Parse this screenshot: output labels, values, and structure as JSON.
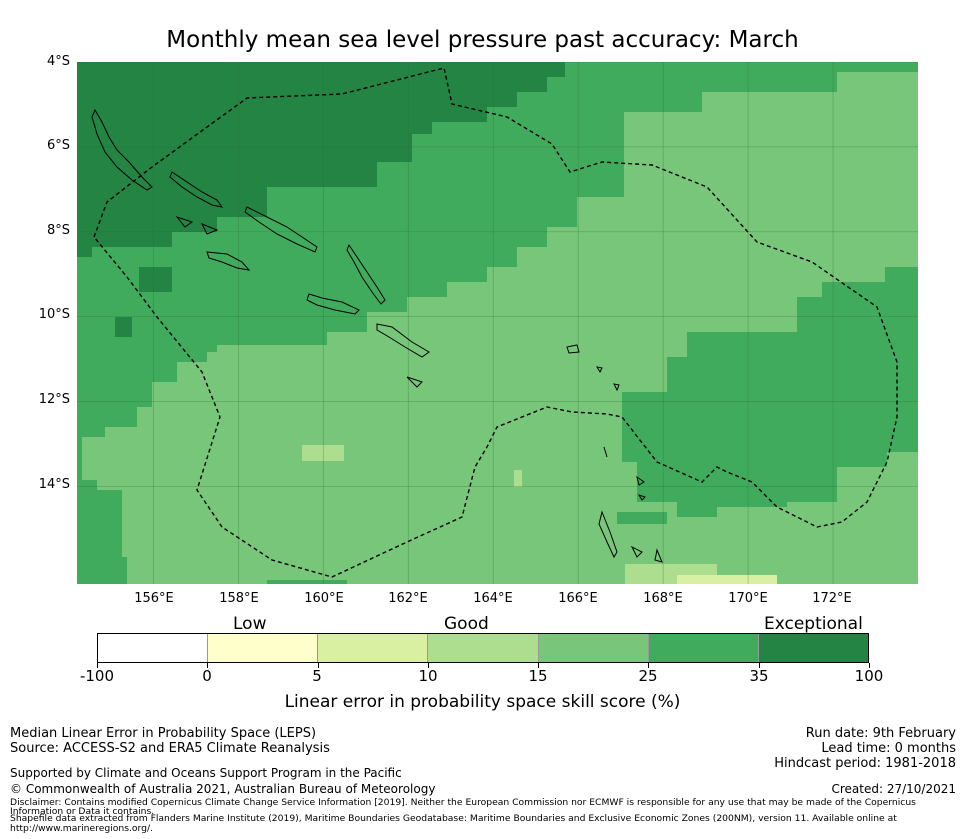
{
  "title": "Monthly mean sea level pressure past accuracy: March",
  "map": {
    "lat_labels": [
      "4°S",
      "6°S",
      "8°S",
      "10°S",
      "12°S",
      "14°S"
    ],
    "lon_labels": [
      "156°E",
      "158°E",
      "160°E",
      "162°E",
      "164°E",
      "166°E",
      "168°E",
      "170°E",
      "172°E"
    ],
    "extent": {
      "lon_min": 154.2,
      "lon_max": 174.0,
      "lat_min": -16.3,
      "lat_max": -4.0
    }
  },
  "legend": {
    "categories": [
      "Low",
      "Good",
      "Exceptional"
    ],
    "ticks": [
      "-100",
      "0",
      "5",
      "10",
      "15",
      "25",
      "35",
      "100"
    ],
    "colors": [
      "#ffffff",
      "#ffffcc",
      "#d9f0a3",
      "#addd8e",
      "#78c679",
      "#41ab5d",
      "#238443"
    ],
    "label": "Linear error in probability space skill score (%)"
  },
  "footer": {
    "left_line1": "Median Linear Error in Probability Space (LEPS)",
    "left_line2": "Source: ACCESS-S2 and ERA5 Climate Reanalysis",
    "support": "Supported by Climate and Oceans Support Program in the Pacific",
    "copyright": "© Commonwealth of Australia 2021, Australian Bureau of Meteorology",
    "disclaimer1": "Disclaimer: Contains modified Copernicus Climate Change Service Information [2019]. Neither the European Commission nor ECMWF is responsible for any use that may be made of the Copernicus",
    "disclaimer2": "Information or Data it contains.",
    "disclaimer3": "Shapefile data extracted from Flanders Marine Institute (2019), Maritime Boundaries Geodatabase: Maritime Boundaries and Exclusive Economic Zones (200NM), version 11. Available online at",
    "disclaimer4": "http://www.marineregions.org/.",
    "run_date": "Run date: 9th February",
    "lead_time": "Lead time: 0 months",
    "hindcast": "Hindcast period: 1981-2018",
    "created": "Created: 27/10/2021"
  }
}
